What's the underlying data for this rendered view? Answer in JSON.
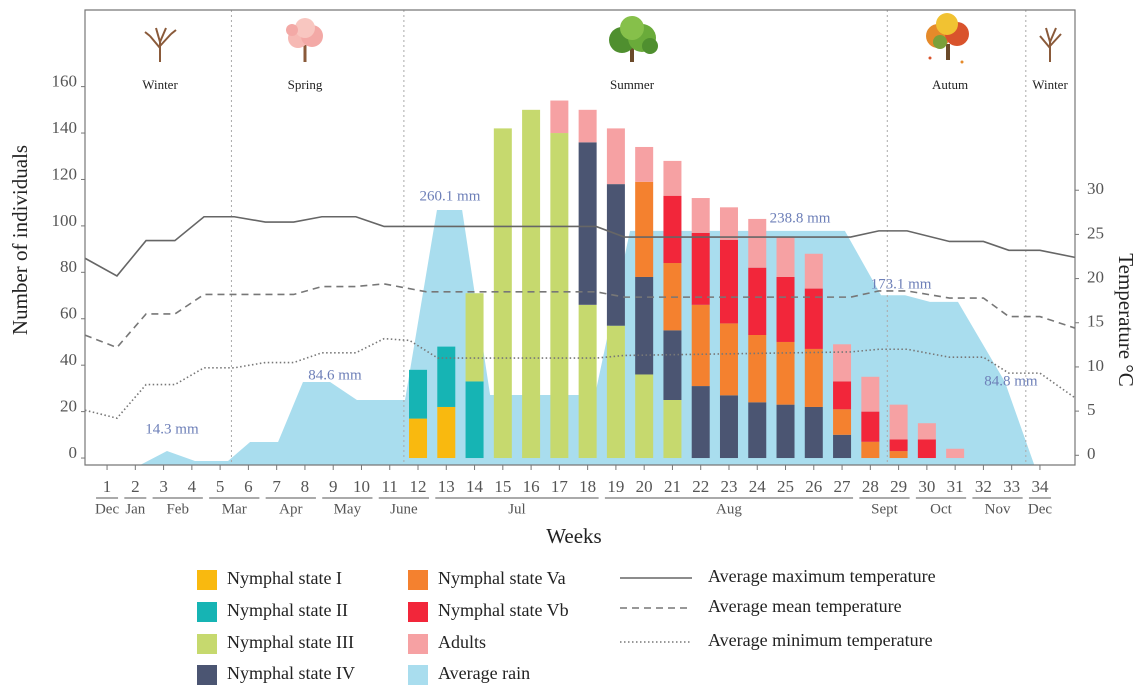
{
  "chart_data": {
    "type": "bar",
    "stacked": true,
    "y_label": "Number of individuals",
    "y2_label": "Temperature °C",
    "x_label": "Weeks",
    "xlim": [
      0.22,
      35.24
    ],
    "xticks": [
      1,
      2,
      3,
      4,
      5,
      6,
      7,
      8,
      9,
      10,
      11,
      12,
      13,
      14,
      15,
      16,
      17,
      18,
      19,
      20,
      21,
      22,
      23,
      24,
      25,
      26,
      27,
      28,
      29,
      30,
      31,
      32,
      33,
      34
    ],
    "ylim": [
      -3,
      193
    ],
    "yticks": [
      0,
      20,
      40,
      60,
      80,
      100,
      120,
      140,
      160
    ],
    "y2lim": [
      -1.1,
      50.4
    ],
    "y2ticks": [
      0,
      5,
      10,
      15,
      20,
      25,
      30
    ],
    "y3lim": [
      0,
      464
    ],
    "months": [
      {
        "label": "Dec",
        "weeks": [
          1,
          1
        ]
      },
      {
        "label": "Jan",
        "weeks": [
          2,
          2
        ]
      },
      {
        "label": "Feb",
        "weeks": [
          3,
          4
        ]
      },
      {
        "label": "Mar",
        "weeks": [
          5,
          6
        ]
      },
      {
        "label": "Apr",
        "weeks": [
          7,
          8
        ]
      },
      {
        "label": "May",
        "weeks": [
          9,
          10
        ]
      },
      {
        "label": "June",
        "weeks": [
          11,
          12
        ]
      },
      {
        "label": "Jul",
        "weeks": [
          13,
          18
        ]
      },
      {
        "label": "Aug",
        "weeks": [
          19,
          27
        ]
      },
      {
        "label": "Sept",
        "weeks": [
          28,
          29
        ]
      },
      {
        "label": "Oct",
        "weeks": [
          30,
          31
        ]
      },
      {
        "label": "Nov",
        "weeks": [
          32,
          33
        ]
      },
      {
        "label": "Dec",
        "weeks": [
          34,
          34
        ]
      }
    ],
    "seasons": [
      "Winter",
      "Spring",
      "Summer",
      "Autum",
      "Winter"
    ],
    "season_bounds": [
      5.4,
      11.5,
      28.6,
      33.5
    ],
    "series": [
      {
        "name": "Nymphal state I",
        "type": "bar",
        "color": "#f9b90f",
        "values": [
          null,
          null,
          null,
          null,
          null,
          null,
          null,
          null,
          null,
          null,
          null,
          17,
          22,
          null,
          null,
          null,
          null,
          null,
          null,
          null,
          null,
          null,
          null,
          null,
          null,
          null,
          null,
          null,
          null,
          null,
          null,
          null,
          null,
          null
        ]
      },
      {
        "name": "Nymphal state II",
        "type": "bar",
        "color": "#16b4b4",
        "values": [
          null,
          null,
          null,
          null,
          null,
          null,
          null,
          null,
          null,
          null,
          null,
          21,
          26,
          33,
          null,
          null,
          null,
          null,
          null,
          null,
          null,
          null,
          null,
          null,
          null,
          null,
          null,
          null,
          null,
          null,
          null,
          null,
          null,
          null
        ]
      },
      {
        "name": "Nymphal state III",
        "type": "bar",
        "color": "#c6d96e",
        "values": [
          null,
          null,
          null,
          null,
          null,
          null,
          null,
          null,
          null,
          null,
          null,
          null,
          null,
          38,
          142,
          150,
          140,
          66,
          57,
          36,
          25,
          null,
          null,
          null,
          null,
          null,
          null,
          null,
          null,
          null,
          null,
          null,
          null,
          null
        ]
      },
      {
        "name": "Nymphal state IV",
        "type": "bar",
        "color": "#4b5572",
        "values": [
          null,
          null,
          null,
          null,
          null,
          null,
          null,
          null,
          null,
          null,
          null,
          null,
          null,
          null,
          null,
          null,
          null,
          70,
          61,
          42,
          30,
          31,
          27,
          24,
          23,
          22,
          10,
          null,
          null,
          null,
          null,
          null,
          null,
          null
        ]
      },
      {
        "name": "Nymphal state Va",
        "type": "bar",
        "color": "#f4812f",
        "values": [
          null,
          null,
          null,
          null,
          null,
          null,
          null,
          null,
          null,
          null,
          null,
          null,
          null,
          null,
          null,
          null,
          null,
          null,
          null,
          41,
          29,
          35,
          31,
          29,
          27,
          25,
          11,
          7,
          3,
          null,
          null,
          null,
          null,
          null
        ]
      },
      {
        "name": "Nymphal state Vb",
        "type": "bar",
        "color": "#f2263a",
        "values": [
          null,
          null,
          null,
          null,
          null,
          null,
          null,
          null,
          null,
          null,
          null,
          null,
          null,
          null,
          null,
          null,
          null,
          null,
          null,
          null,
          29,
          31,
          36,
          29,
          28,
          26,
          12,
          13,
          5,
          8,
          null,
          null,
          null,
          null
        ]
      },
      {
        "name": "Adults",
        "type": "bar",
        "color": "#f6a1a3",
        "values": [
          null,
          null,
          null,
          null,
          null,
          null,
          null,
          null,
          null,
          null,
          null,
          null,
          null,
          null,
          null,
          null,
          14,
          14,
          24,
          15,
          15,
          15,
          14,
          21,
          17,
          15,
          16,
          15,
          15,
          7,
          4,
          null,
          null,
          null
        ]
      },
      {
        "name": "Average rain",
        "type": "area",
        "axis": "y3",
        "color": "#a9ddee",
        "x": [
          2.17,
          3.12,
          4.11,
          5.28,
          6.06,
          7.05,
          7.93,
          8.89,
          9.84,
          11.54,
          12.67,
          13.56,
          14.55,
          18.26,
          19.5,
          27.1,
          28.38,
          29.23,
          30.11,
          31.1,
          32.76,
          33.8
        ],
        "values": [
          0,
          14.3,
          4.1,
          4.1,
          23.5,
          23.5,
          84.6,
          84.6,
          66.3,
          66.3,
          260.1,
          260.1,
          71.4,
          71.4,
          238.8,
          238.8,
          173.1,
          173.1,
          166.3,
          166.3,
          84.8,
          0
        ],
        "value_labels": [
          null,
          "14.3 mm",
          null,
          null,
          null,
          null,
          "84.6 mm",
          null,
          null,
          null,
          "260.1 mm",
          null,
          null,
          null,
          "238.8 mm",
          null,
          "173.1 mm",
          null,
          null,
          null,
          "84.8 mm",
          null
        ]
      },
      {
        "name": "Average maximum temperature",
        "type": "line",
        "axis": "y2",
        "color": "#666666",
        "dash": "solid",
        "x": [
          0.22,
          1.35,
          2.38,
          3.4,
          4.43,
          5.5,
          6.6,
          7.6,
          8.6,
          9.8,
          10.8,
          18.3,
          19.3,
          27.3,
          28.3,
          29.3,
          30.8,
          32,
          32.9,
          34,
          35.24
        ],
        "values": [
          22.3,
          20.3,
          24.3,
          24.3,
          27,
          27,
          26.4,
          26.4,
          27,
          27,
          25.9,
          25.9,
          24.7,
          24.7,
          25.4,
          25.4,
          24.2,
          24.2,
          23.2,
          23.2,
          22.4
        ]
      },
      {
        "name": "Average mean temperature",
        "type": "line",
        "axis": "y2",
        "color": "#777777",
        "dash": "dashed",
        "x": [
          0.22,
          1.35,
          2.38,
          3.4,
          4.43,
          5.5,
          6.6,
          7.6,
          8.6,
          9.8,
          10.8,
          12.3,
          18.3,
          19.3,
          27.3,
          28.3,
          29.3,
          30.8,
          32,
          32.9,
          34,
          35.24
        ],
        "values": [
          13.6,
          12.2,
          16,
          16,
          18.2,
          18.2,
          18.2,
          18.2,
          19.1,
          19.1,
          19.4,
          18.5,
          18.5,
          17.9,
          17.9,
          18.6,
          18.6,
          17.8,
          17.8,
          15.7,
          15.7,
          14.4
        ]
      },
      {
        "name": "Average minimum temperature",
        "type": "line",
        "axis": "y2",
        "color": "#777777",
        "dash": "dotted",
        "x": [
          0.22,
          1.35,
          2.38,
          3.4,
          4.43,
          5.5,
          6.6,
          7.6,
          8.6,
          9.8,
          10.8,
          11.7,
          12.7,
          18.3,
          19.3,
          27.3,
          28.3,
          29.3,
          30.8,
          32,
          32.9,
          34,
          35.24
        ],
        "values": [
          5.1,
          4.2,
          8,
          8,
          9.9,
          9.9,
          10.5,
          10.5,
          11.6,
          11.6,
          13.2,
          13,
          11,
          11,
          11.3,
          11.7,
          12,
          12,
          11.1,
          11.1,
          9.3,
          9.3,
          6.5
        ]
      }
    ]
  }
}
